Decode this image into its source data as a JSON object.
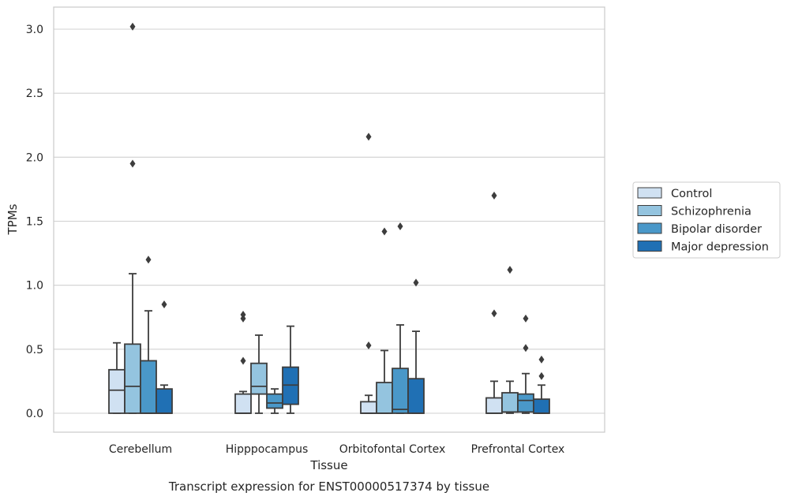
{
  "chart_data": {
    "type": "box",
    "title": "Transcript expression for ENST00000517374 by tissue",
    "xlabel": "Tissue",
    "ylabel": "TPMs",
    "ylim": [
      -0.15,
      3.18
    ],
    "yticks": [
      "0.0",
      "0.5",
      "1.0",
      "1.5",
      "2.0",
      "2.5",
      "3.0"
    ],
    "ytick_values": [
      0.0,
      0.5,
      1.0,
      1.5,
      2.0,
      2.5,
      3.0
    ],
    "grid": "horizontal",
    "legend_position": "outside-right",
    "categories": [
      "Cerebellum",
      "Hipppocampus",
      "Orbitofontal Cortex",
      "Prefrontal Cortex"
    ],
    "series": [
      {
        "name": "Control",
        "color": "#d0e1f2",
        "boxes": [
          {
            "whislo": 0.0,
            "q1": 0.0,
            "med": 0.18,
            "q3": 0.34,
            "whishi": 0.55,
            "fliers": []
          },
          {
            "whislo": 0.0,
            "q1": 0.0,
            "med": 0.0,
            "q3": 0.15,
            "whishi": 0.17,
            "fliers": [
              0.41,
              0.74,
              0.77
            ]
          },
          {
            "whislo": 0.0,
            "q1": 0.0,
            "med": 0.0,
            "q3": 0.09,
            "whishi": 0.14,
            "fliers": [
              0.53,
              2.16
            ]
          },
          {
            "whislo": 0.0,
            "q1": 0.0,
            "med": 0.0,
            "q3": 0.12,
            "whishi": 0.25,
            "fliers": [
              0.78,
              1.7
            ]
          }
        ]
      },
      {
        "name": "Schizophrenia",
        "color": "#94c4df",
        "boxes": [
          {
            "whislo": 0.0,
            "q1": 0.0,
            "med": 0.21,
            "q3": 0.54,
            "whishi": 1.09,
            "fliers": [
              1.95,
              3.02
            ]
          },
          {
            "whislo": 0.0,
            "q1": 0.15,
            "med": 0.21,
            "q3": 0.39,
            "whishi": 0.61,
            "fliers": []
          },
          {
            "whislo": 0.0,
            "q1": 0.0,
            "med": 0.0,
            "q3": 0.24,
            "whishi": 0.49,
            "fliers": [
              1.42
            ]
          },
          {
            "whislo": 0.0,
            "q1": 0.01,
            "med": 0.01,
            "q3": 0.16,
            "whishi": 0.25,
            "fliers": [
              1.12
            ]
          }
        ]
      },
      {
        "name": "Bipolar disorder",
        "color": "#4a98c9",
        "boxes": [
          {
            "whislo": 0.0,
            "q1": 0.0,
            "med": 0.0,
            "q3": 0.41,
            "whishi": 0.8,
            "fliers": [
              1.2
            ]
          },
          {
            "whislo": 0.0,
            "q1": 0.04,
            "med": 0.08,
            "q3": 0.15,
            "whishi": 0.19,
            "fliers": []
          },
          {
            "whislo": 0.0,
            "q1": 0.0,
            "med": 0.03,
            "q3": 0.35,
            "whishi": 0.69,
            "fliers": [
              1.46
            ]
          },
          {
            "whislo": 0.0,
            "q1": 0.01,
            "med": 0.1,
            "q3": 0.15,
            "whishi": 0.31,
            "fliers": [
              0.51,
              0.74
            ]
          }
        ]
      },
      {
        "name": "Major depression",
        "color": "#2070b4",
        "boxes": [
          {
            "whislo": 0.0,
            "q1": 0.0,
            "med": 0.0,
            "q3": 0.19,
            "whishi": 0.22,
            "fliers": [
              0.85
            ]
          },
          {
            "whislo": 0.0,
            "q1": 0.07,
            "med": 0.22,
            "q3": 0.36,
            "whishi": 0.68,
            "fliers": []
          },
          {
            "whislo": 0.0,
            "q1": 0.0,
            "med": 0.0,
            "q3": 0.27,
            "whishi": 0.64,
            "fliers": [
              1.02
            ]
          },
          {
            "whislo": 0.0,
            "q1": 0.0,
            "med": 0.0,
            "q3": 0.11,
            "whishi": 0.22,
            "fliers": [
              0.29,
              0.42
            ]
          }
        ]
      }
    ]
  }
}
